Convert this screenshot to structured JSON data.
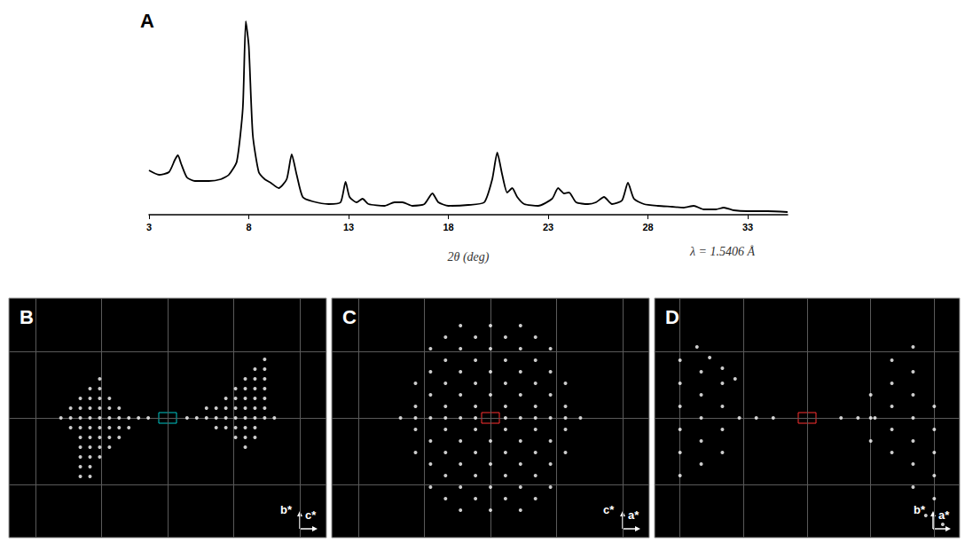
{
  "chart_data": [
    {
      "type": "line",
      "title": "A",
      "x": [
        3,
        3.5,
        4.0,
        4.3,
        4.45,
        4.6,
        4.9,
        5.3,
        6.0,
        6.6,
        7.0,
        7.4,
        7.7,
        7.85,
        8.0,
        8.2,
        8.5,
        8.8,
        9.1,
        9.5,
        9.9,
        10.15,
        10.4,
        10.7,
        11.2,
        12.0,
        12.6,
        12.85,
        13.05,
        13.4,
        13.7,
        14.0,
        14.8,
        15.3,
        15.7,
        16.2,
        16.8,
        17.2,
        17.5,
        18.0,
        19.0,
        19.8,
        20.2,
        20.45,
        20.7,
        20.95,
        21.2,
        21.45,
        21.8,
        22.5,
        23.2,
        23.5,
        23.8,
        24.05,
        24.4,
        25.0,
        25.4,
        25.8,
        26.2,
        26.7,
        27.0,
        27.3,
        27.8,
        28.5,
        29.2,
        29.8,
        30.3,
        30.8,
        31.4,
        31.8,
        32.3,
        33.0,
        34.0,
        35.0
      ],
      "values": [
        50,
        45,
        48,
        62,
        67,
        58,
        42,
        38,
        38,
        40,
        45,
        60,
        120,
        218,
        190,
        90,
        48,
        40,
        36,
        30,
        40,
        68,
        45,
        20,
        15,
        12,
        14,
        37,
        20,
        14,
        18,
        12,
        10,
        14,
        14,
        10,
        12,
        24,
        14,
        10,
        11,
        14,
        40,
        70,
        45,
        25,
        30,
        20,
        12,
        10,
        18,
        30,
        24,
        25,
        14,
        12,
        14,
        20,
        12,
        16,
        36,
        18,
        12,
        10,
        9,
        8,
        10,
        6,
        6,
        8,
        5,
        4,
        4,
        3
      ],
      "color": "#000000",
      "xlim": [
        3,
        35
      ],
      "xticks": [
        3,
        8,
        13,
        18,
        23,
        28,
        33
      ],
      "ylim": [
        0,
        230
      ],
      "xlabel": "2θ (deg)",
      "annotations": [
        "λ = 1.5406 Å"
      ],
      "tick_labels": "x",
      "grid": false
    },
    {
      "type": "scatter",
      "title": "B",
      "x": [
        -121,
        -110,
        -99,
        -88,
        -77,
        -66,
        -55,
        -44,
        -33,
        -22,
        22,
        33,
        44,
        55,
        66,
        77,
        88,
        99,
        110,
        121,
        -110,
        -99,
        -88,
        -77,
        -66,
        -55,
        44,
        55,
        66,
        77,
        88,
        99,
        110,
        -110,
        -99,
        -88,
        -77,
        -66,
        -55,
        -44,
        55,
        66,
        77,
        88,
        99,
        -99,
        -88,
        -77,
        -66,
        66,
        77,
        88,
        99,
        110,
        -99,
        -88,
        -77,
        -66,
        -55,
        77,
        88,
        99,
        -88,
        -77,
        77,
        88,
        99,
        110,
        -99,
        -88,
        -77,
        -66,
        88,
        -77,
        88,
        99,
        110,
        -99,
        -88,
        -77,
        99,
        110,
        -99,
        -88,
        -99,
        -88,
        110
      ],
      "values": [
        0,
        0,
        0,
        0,
        0,
        0,
        0,
        0,
        0,
        0,
        0,
        0,
        0,
        0,
        0,
        0,
        0,
        0,
        0,
        0,
        11,
        11,
        11,
        11,
        11,
        11,
        11,
        11,
        11,
        11,
        11,
        11,
        11,
        -11,
        -11,
        -11,
        -11,
        -11,
        -11,
        -11,
        -11,
        -11,
        -11,
        -11,
        -11,
        22,
        22,
        22,
        22,
        22,
        22,
        22,
        22,
        22,
        -22,
        -22,
        -22,
        -22,
        -22,
        -22,
        -22,
        -22,
        33,
        33,
        33,
        33,
        33,
        33,
        -33,
        -33,
        -33,
        -33,
        -33,
        44,
        44,
        44,
        44,
        -44,
        -44,
        -44,
        55,
        55,
        -55,
        -55,
        -66,
        -66,
        66
      ],
      "color": "#ffffff",
      "xlim": [
        -180,
        180
      ],
      "xticks": [
        -150,
        -75,
        0,
        75,
        150
      ],
      "ylim": [
        -135,
        135
      ],
      "yticks": [
        -75,
        0,
        75
      ],
      "xlabel": "c*",
      "ylabel": "b*",
      "grid": true,
      "tick_labels": false
    },
    {
      "type": "scatter",
      "title": "C",
      "x": [
        -34,
        0,
        34,
        -51,
        -17,
        17,
        51,
        -68,
        -34,
        0,
        34,
        68,
        -51,
        -17,
        17,
        51,
        -68,
        -34,
        0,
        34,
        68,
        -85,
        -51,
        -17,
        17,
        51,
        85,
        -68,
        -34,
        0,
        34,
        68,
        -85,
        -51,
        -17,
        17,
        51,
        85,
        -102,
        -85,
        -68,
        -51,
        -34,
        -17,
        17,
        34,
        51,
        68,
        85,
        102,
        -85,
        -51,
        -17,
        17,
        51,
        85,
        -68,
        -34,
        0,
        34,
        68,
        -85,
        -51,
        -17,
        17,
        51,
        85,
        -68,
        -34,
        0,
        34,
        68,
        -51,
        -17,
        17,
        51,
        -68,
        -34,
        0,
        34,
        68,
        -51,
        -17,
        17,
        51,
        -34,
        0,
        34
      ],
      "values": [
        104,
        104,
        104,
        91,
        91,
        91,
        91,
        78,
        78,
        78,
        78,
        78,
        65,
        65,
        65,
        65,
        52,
        52,
        52,
        52,
        52,
        39,
        39,
        39,
        39,
        39,
        39,
        26,
        26,
        26,
        26,
        26,
        13,
        13,
        13,
        13,
        13,
        13,
        0,
        0,
        0,
        0,
        0,
        0,
        0,
        0,
        0,
        0,
        0,
        0,
        -13,
        -13,
        -13,
        -13,
        -13,
        -13,
        -26,
        -26,
        -26,
        -26,
        -26,
        -39,
        -39,
        -39,
        -39,
        -39,
        -39,
        -52,
        -52,
        -52,
        -52,
        -52,
        -65,
        -65,
        -65,
        -65,
        -78,
        -78,
        -78,
        -78,
        -78,
        -91,
        -91,
        -91,
        -91,
        -104,
        -104,
        -104
      ],
      "color": "#ffffff",
      "xlim": [
        -180,
        180
      ],
      "xticks": [
        -150,
        -75,
        0,
        75,
        150
      ],
      "ylim": [
        -135,
        135
      ],
      "yticks": [
        -75,
        0,
        75
      ],
      "xlabel": "a*",
      "ylabel": "c*",
      "grid": true,
      "tick_labels": false
    },
    {
      "type": "scatter",
      "title": "D",
      "x": [
        -80,
        -60,
        -40,
        40,
        60,
        80,
        -150,
        -150,
        -150,
        -150,
        -150,
        -150,
        -125,
        -125,
        -125,
        -125,
        -125,
        -100,
        -100,
        -100,
        -100,
        -130,
        -115,
        -100,
        -85,
        75,
        75,
        75,
        100,
        100,
        100,
        100,
        125,
        125,
        125,
        125,
        125,
        125,
        150,
        150,
        150,
        150,
        150,
        100,
        125,
        140,
        160
      ],
      "values": [
        0,
        0,
        0,
        0,
        0,
        0,
        -65,
        -39,
        -13,
        13,
        39,
        65,
        -52,
        -26,
        0,
        26,
        52,
        -39,
        -13,
        13,
        39,
        80,
        68,
        56,
        44,
        26,
        0,
        -26,
        39,
        13,
        -13,
        -39,
        52,
        26,
        0,
        -26,
        -52,
        -78,
        13,
        -13,
        -39,
        -65,
        -91,
        65,
        80,
        -110,
        -120
      ],
      "color": "#ffffff",
      "xlim": [
        -180,
        180
      ],
      "xticks": [
        -150,
        -75,
        0,
        75,
        150
      ],
      "ylim": [
        -135,
        135
      ],
      "yticks": [
        -75,
        0,
        75
      ],
      "xlabel": "a*",
      "ylabel": "b*",
      "grid": true,
      "tick_labels": false
    }
  ]
}
